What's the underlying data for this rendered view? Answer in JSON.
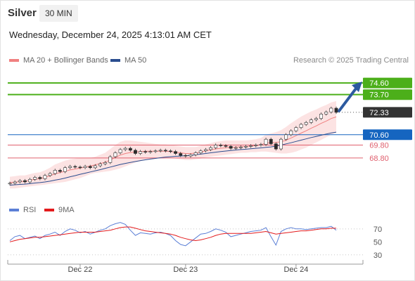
{
  "header": {
    "symbol": "Silver",
    "timeframe": "30 MIN",
    "datetime": "Wednesday, December 24, 2025 4:13:01 AM CET"
  },
  "legend": {
    "ma20_label": "MA 20 + Bollinger Bands",
    "ma20_color": "#f08080",
    "ma50_label": "MA 50",
    "ma50_color": "#2a4d8f",
    "credit": "Research © 2025 Trading Central"
  },
  "rsi_legend": {
    "rsi_label": "RSI",
    "rsi_color": "#5b7fd6",
    "ma_label": "9MA",
    "ma_color": "#e31a1c"
  },
  "colors": {
    "resistance": "#4caf1a",
    "support": "#e0606e",
    "pivot": "#1565c0",
    "current_bg": "#333333",
    "arrow": "#2c5aa0",
    "candle_up": "#ffffff",
    "candle_down": "#2b2b2b"
  },
  "chart_data": [
    {
      "type": "candlestick",
      "title": "",
      "ylim": [
        65.7,
        75.8
      ],
      "x_ticks": [
        "Dec 22",
        "Dec 23",
        "Dec 24"
      ],
      "levels": [
        {
          "label": "74.60",
          "value": 74.6,
          "kind": "resistance"
        },
        {
          "label": "73.70",
          "value": 73.7,
          "kind": "resistance"
        },
        {
          "label": "72.33",
          "value": 72.33,
          "kind": "current"
        },
        {
          "label": "70.60",
          "value": 70.6,
          "kind": "pivot"
        },
        {
          "label": "69.80",
          "value": 69.8,
          "kind": "support"
        },
        {
          "label": "68.80",
          "value": 68.8,
          "kind": "support"
        }
      ],
      "close": [
        66.85,
        66.95,
        67.05,
        66.95,
        67.15,
        67.3,
        67.2,
        67.45,
        67.6,
        67.85,
        67.75,
        68.05,
        68.15,
        68.1,
        68.05,
        68.15,
        68.05,
        68.2,
        68.35,
        68.45,
        68.9,
        69.2,
        69.45,
        69.55,
        69.4,
        69.15,
        69.3,
        69.25,
        69.3,
        69.35,
        69.4,
        69.35,
        69.3,
        69.15,
        69.0,
        68.95,
        69.05,
        69.2,
        69.35,
        69.45,
        69.6,
        69.8,
        69.75,
        69.7,
        69.55,
        69.6,
        69.65,
        69.7,
        69.75,
        69.8,
        69.85,
        70.25,
        69.9,
        69.5,
        70.25,
        70.6,
        70.9,
        71.15,
        71.4,
        71.55,
        71.75,
        71.85,
        72.2,
        72.35,
        72.65,
        72.33
      ],
      "ma50": [
        66.7,
        66.73,
        66.76,
        66.78,
        66.82,
        66.87,
        66.9,
        66.95,
        67.01,
        67.09,
        67.16,
        67.25,
        67.35,
        67.44,
        67.54,
        67.63,
        67.72,
        67.81,
        67.9,
        68.0,
        68.1,
        68.2,
        68.3,
        68.38,
        68.46,
        68.53,
        68.6,
        68.66,
        68.72,
        68.77,
        68.82,
        68.87,
        68.9,
        68.93,
        68.95,
        68.98,
        69.0,
        69.05,
        69.1,
        69.15,
        69.2,
        69.25,
        69.3,
        69.34,
        69.38,
        69.42,
        69.45,
        69.48,
        69.52,
        69.55,
        69.58,
        69.62,
        69.66,
        69.72,
        69.8,
        69.89,
        69.98,
        70.08,
        70.18,
        70.28,
        70.38,
        70.47,
        70.56,
        70.65,
        70.74,
        70.8
      ],
      "bollinger_upper": [
        67.35,
        67.4,
        67.45,
        67.45,
        67.55,
        67.65,
        67.7,
        67.85,
        68.05,
        68.3,
        68.45,
        68.6,
        68.7,
        68.75,
        68.8,
        68.8,
        68.8,
        68.9,
        69.05,
        69.2,
        69.5,
        69.8,
        70.05,
        70.15,
        70.15,
        70.1,
        70.05,
        70.0,
        69.95,
        69.9,
        69.85,
        69.85,
        69.8,
        69.75,
        69.7,
        69.65,
        69.65,
        69.65,
        69.75,
        69.85,
        69.95,
        70.05,
        70.1,
        70.15,
        70.15,
        70.15,
        70.15,
        70.15,
        70.2,
        70.25,
        70.35,
        70.6,
        70.7,
        70.8,
        70.95,
        71.2,
        71.5,
        71.75,
        72.0,
        72.2,
        72.4,
        72.55,
        72.75,
        72.9,
        73.1,
        73.2
      ],
      "bollinger_lower": [
        66.45,
        66.45,
        66.5,
        66.55,
        66.6,
        66.65,
        66.7,
        66.75,
        66.8,
        66.85,
        66.9,
        66.95,
        67.05,
        67.15,
        67.25,
        67.4,
        67.55,
        67.65,
        67.7,
        67.75,
        67.8,
        67.9,
        68.0,
        68.15,
        68.3,
        68.45,
        68.55,
        68.65,
        68.7,
        68.75,
        68.8,
        68.8,
        68.8,
        68.75,
        68.7,
        68.65,
        68.65,
        68.7,
        68.75,
        68.85,
        68.9,
        68.95,
        69.0,
        69.05,
        69.1,
        69.15,
        69.2,
        69.2,
        69.25,
        69.25,
        69.3,
        69.3,
        69.25,
        69.2,
        69.15,
        69.15,
        69.2,
        69.3,
        69.45,
        69.6,
        69.8,
        70.0,
        70.2,
        70.4,
        70.6,
        70.75
      ]
    },
    {
      "type": "line",
      "title": "RSI",
      "ylim": [
        20,
        85
      ],
      "y_ticks": [
        70,
        50,
        30
      ],
      "rsi": [
        52,
        58,
        60,
        55,
        57,
        59,
        55,
        60,
        62,
        65,
        60,
        66,
        70,
        68,
        64,
        66,
        62,
        65,
        68,
        70,
        75,
        78,
        80,
        77,
        68,
        60,
        64,
        63,
        62,
        64,
        65,
        63,
        60,
        52,
        46,
        44,
        50,
        56,
        62,
        63,
        66,
        70,
        68,
        65,
        58,
        60,
        62,
        64,
        66,
        67,
        68,
        72,
        58,
        45,
        66,
        70,
        72,
        70,
        70,
        69,
        70,
        71,
        72,
        72,
        74,
        68
      ],
      "rsi_ma9": [
        50,
        52,
        54,
        55,
        56,
        57,
        57,
        58,
        59,
        60,
        61,
        62,
        63,
        64,
        65,
        65,
        65,
        65,
        66,
        67,
        68,
        70,
        72,
        73,
        73,
        71,
        69,
        67,
        66,
        65,
        64,
        63,
        62,
        60,
        57,
        55,
        53,
        52,
        53,
        55,
        57,
        60,
        62,
        63,
        63,
        63,
        63,
        63,
        63,
        64,
        65,
        66,
        64,
        62,
        63,
        64,
        65,
        66,
        67,
        67,
        68,
        69,
        70,
        70,
        71,
        71
      ]
    }
  ]
}
